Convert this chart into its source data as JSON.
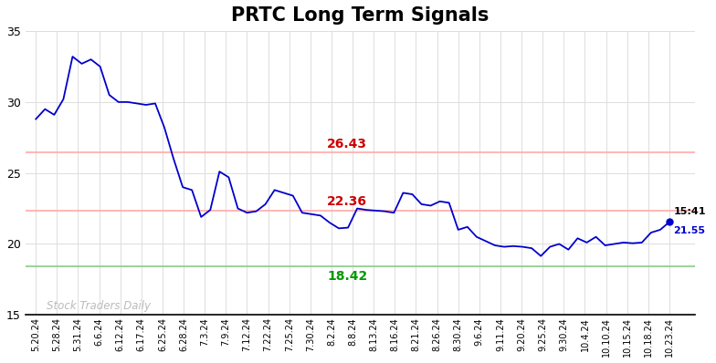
{
  "title": "PRTC Long Term Signals",
  "x_labels": [
    "5.20.24",
    "5.28.24",
    "5.31.24",
    "6.6.24",
    "6.12.24",
    "6.17.24",
    "6.25.24",
    "6.28.24",
    "7.3.24",
    "7.9.24",
    "7.12.24",
    "7.22.24",
    "7.25.24",
    "7.30.24",
    "8.2.24",
    "8.8.24",
    "8.13.24",
    "8.16.24",
    "8.21.24",
    "8.26.24",
    "8.30.24",
    "9.6.24",
    "9.11.24",
    "9.20.24",
    "9.25.24",
    "9.30.24",
    "10.4.24",
    "10.10.24",
    "10.15.24",
    "10.18.24",
    "10.23.24"
  ],
  "y_values": [
    28.8,
    29.5,
    29.1,
    30.2,
    33.2,
    32.7,
    33.0,
    32.5,
    30.5,
    30.0,
    30.0,
    29.9,
    29.8,
    29.9,
    28.2,
    26.0,
    24.0,
    23.8,
    21.9,
    22.4,
    25.1,
    24.7,
    22.5,
    22.2,
    22.3,
    22.8,
    23.8,
    23.6,
    23.4,
    22.2,
    22.1,
    22.0,
    21.5,
    21.1,
    21.15,
    22.5,
    22.4,
    22.35,
    22.3,
    22.2,
    23.6,
    23.5,
    22.8,
    22.7,
    23.0,
    22.9,
    21.0,
    21.2,
    20.5,
    20.2,
    19.9,
    19.8,
    19.85,
    19.8,
    19.7,
    19.15,
    19.8,
    20.0,
    19.6,
    20.4,
    20.1,
    20.5,
    19.9,
    20.0,
    20.1,
    20.05,
    20.1,
    20.8,
    21.0,
    21.55
  ],
  "line_color": "#0000cc",
  "line_width": 1.3,
  "hline_upper": 26.43,
  "hline_mid": 22.36,
  "hline_lower": 18.42,
  "hline_upper_color": "#ffaaaa",
  "hline_mid_color": "#ffaaaa",
  "hline_lower_color": "#88cc88",
  "hline_linewidth": 1.2,
  "annotation_upper_text": "26.43",
  "annotation_upper_color": "#cc0000",
  "annotation_mid_text": "22.36",
  "annotation_mid_color": "#cc0000",
  "annotation_lower_text": "18.42",
  "annotation_lower_color": "#009900",
  "watermark_text": "Stock Traders Daily",
  "watermark_color": "#bbbbbb",
  "end_label_time": "15:41",
  "end_label_price": "21.55",
  "end_dot_color": "#0000cc",
  "ylim_min": 15,
  "ylim_max": 35,
  "yticks": [
    15,
    20,
    25,
    30,
    35
  ],
  "background_color": "#ffffff",
  "grid_color": "#dddddd",
  "title_fontsize": 15,
  "figsize": [
    7.84,
    3.98
  ],
  "dpi": 100
}
